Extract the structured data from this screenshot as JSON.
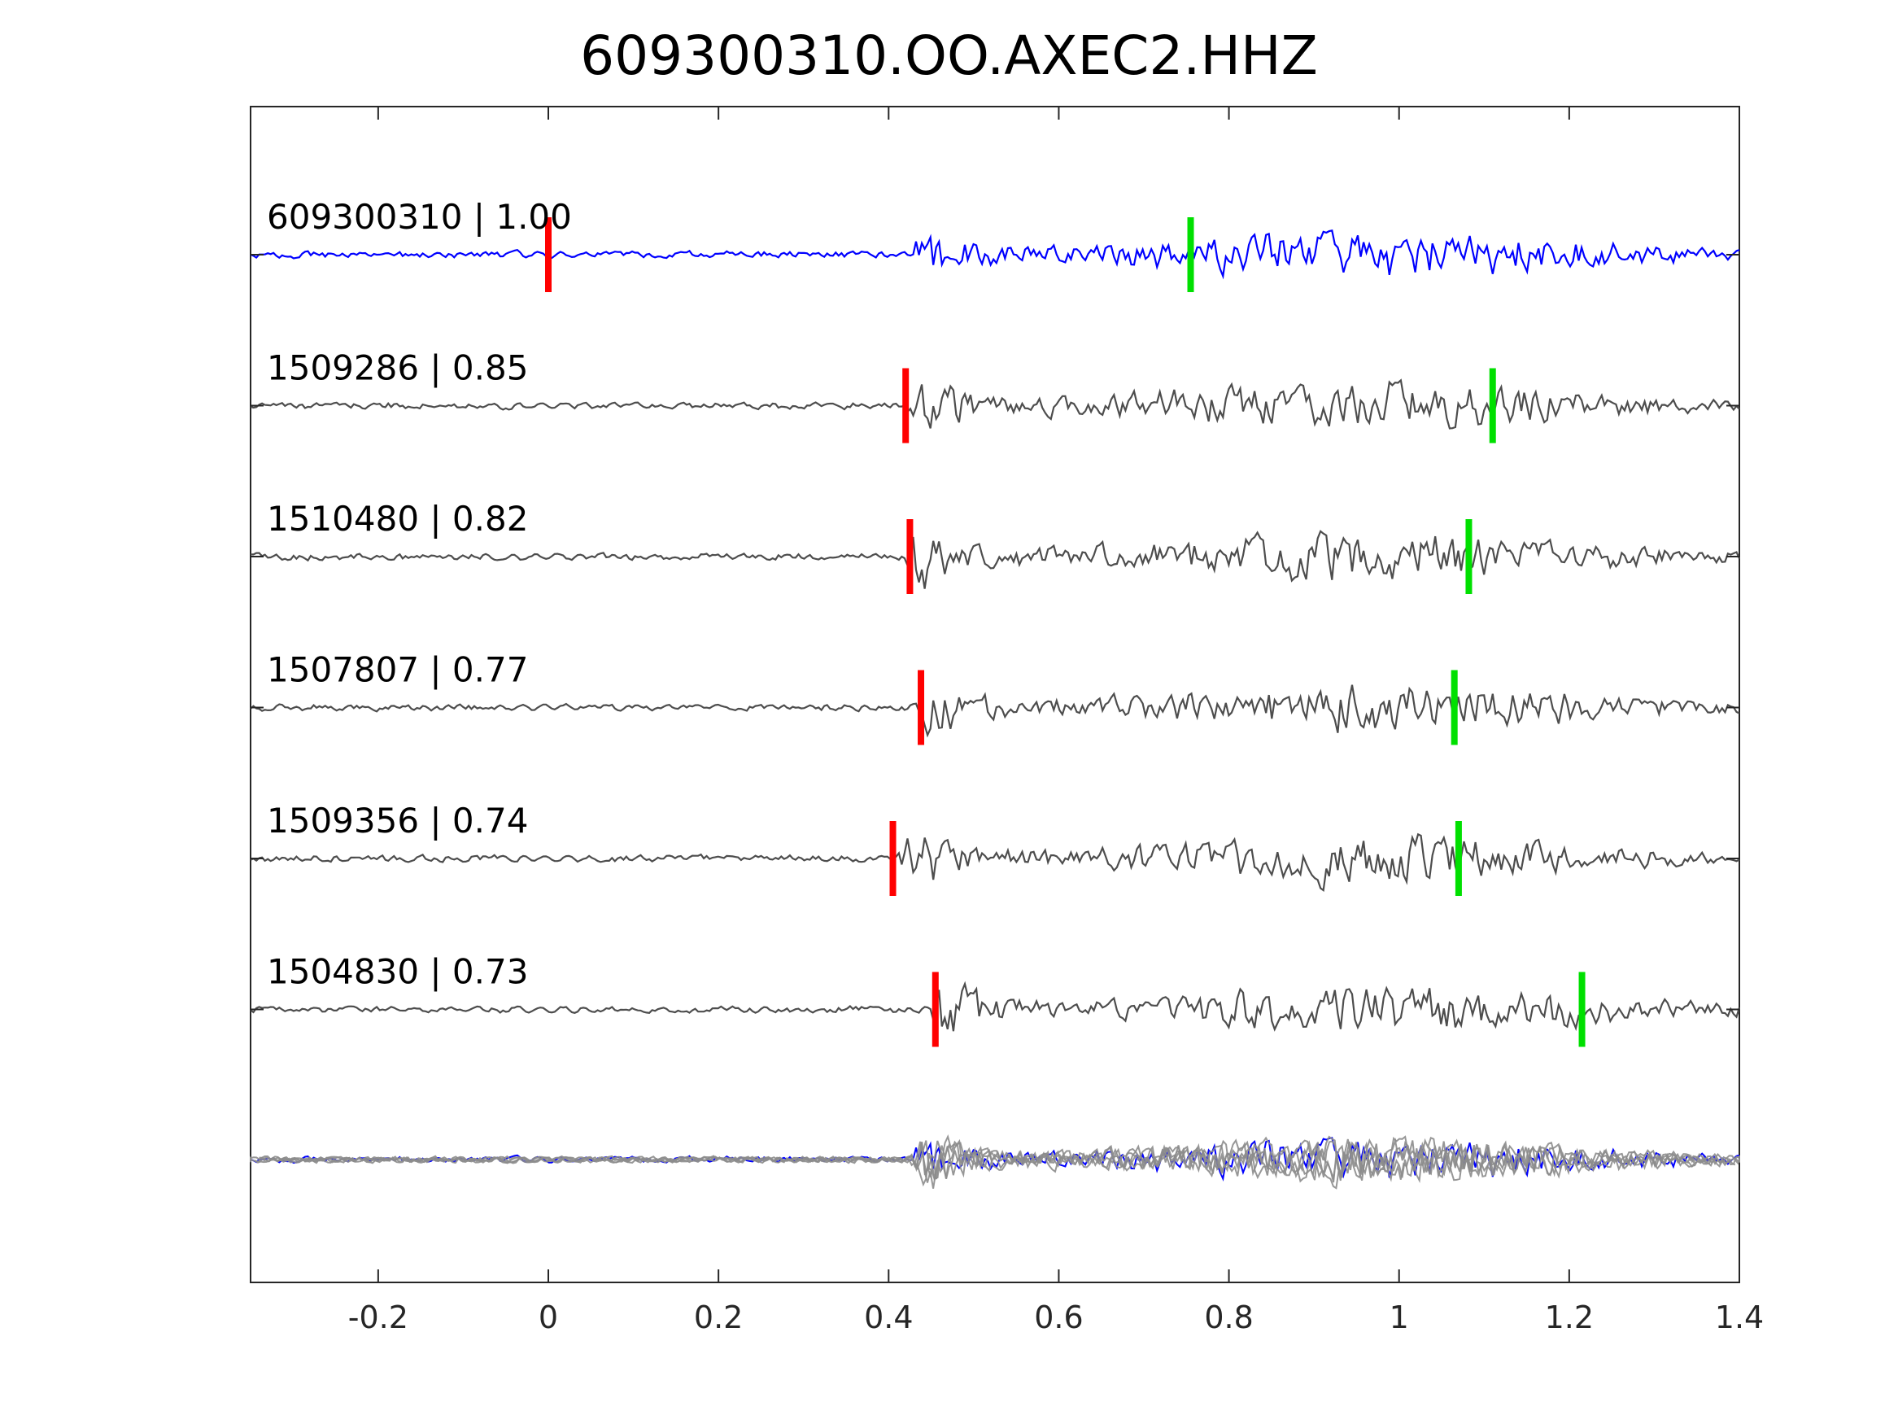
{
  "chart_data": {
    "type": "line",
    "title": "609300310.OO.AXEC2.HHZ",
    "xlabel": "",
    "ylabel": "",
    "xlim": [
      -0.35,
      1.4
    ],
    "xticks": [
      -0.2,
      0,
      0.2,
      0.4,
      0.6,
      0.8,
      1,
      1.2,
      1.4
    ],
    "xtick_labels": [
      "-0.2",
      "0",
      "0.2",
      "0.4",
      "0.6",
      "0.8",
      "1",
      "1.2",
      "1.4"
    ],
    "grid": false,
    "legend": "none",
    "colors": {
      "template": "#0000ff",
      "match": "#4d4d4d",
      "overlay_match": "#8c8c8c",
      "p_pick": "#ff0000",
      "s_pick": "#00e000"
    },
    "series": [
      {
        "name": "609300310",
        "cc": "1.00",
        "label": "609300310 | 1.00",
        "role": "template",
        "p_pick": 0.0,
        "s_pick": 0.755,
        "onset": 0.425,
        "amp": 1.0,
        "seed": 11
      },
      {
        "name": "1509286",
        "cc": "0.85",
        "label": "1509286 | 0.85",
        "role": "match",
        "p_pick": 0.42,
        "s_pick": 1.11,
        "onset": 0.42,
        "amp": 1.0,
        "seed": 23
      },
      {
        "name": "1510480",
        "cc": "0.82",
        "label": "1510480 | 0.82",
        "role": "match",
        "p_pick": 0.425,
        "s_pick": 1.082,
        "onset": 0.415,
        "amp": 1.0,
        "seed": 37
      },
      {
        "name": "1507807",
        "cc": "0.77",
        "label": "1507807 | 0.77",
        "role": "match",
        "p_pick": 0.438,
        "s_pick": 1.065,
        "onset": 0.43,
        "amp": 1.0,
        "seed": 41
      },
      {
        "name": "1509356",
        "cc": "0.74",
        "label": "1509356 | 0.74",
        "role": "match",
        "p_pick": 0.405,
        "s_pick": 1.07,
        "onset": 0.41,
        "amp": 1.0,
        "seed": 53
      },
      {
        "name": "1504830",
        "cc": "0.73",
        "label": "1504830 | 0.73",
        "role": "match",
        "p_pick": 0.455,
        "s_pick": 1.215,
        "onset": 0.445,
        "amp": 1.0,
        "seed": 67
      }
    ],
    "stack": {
      "role": "overlay",
      "description_of": "all traces aligned and overlaid"
    }
  }
}
